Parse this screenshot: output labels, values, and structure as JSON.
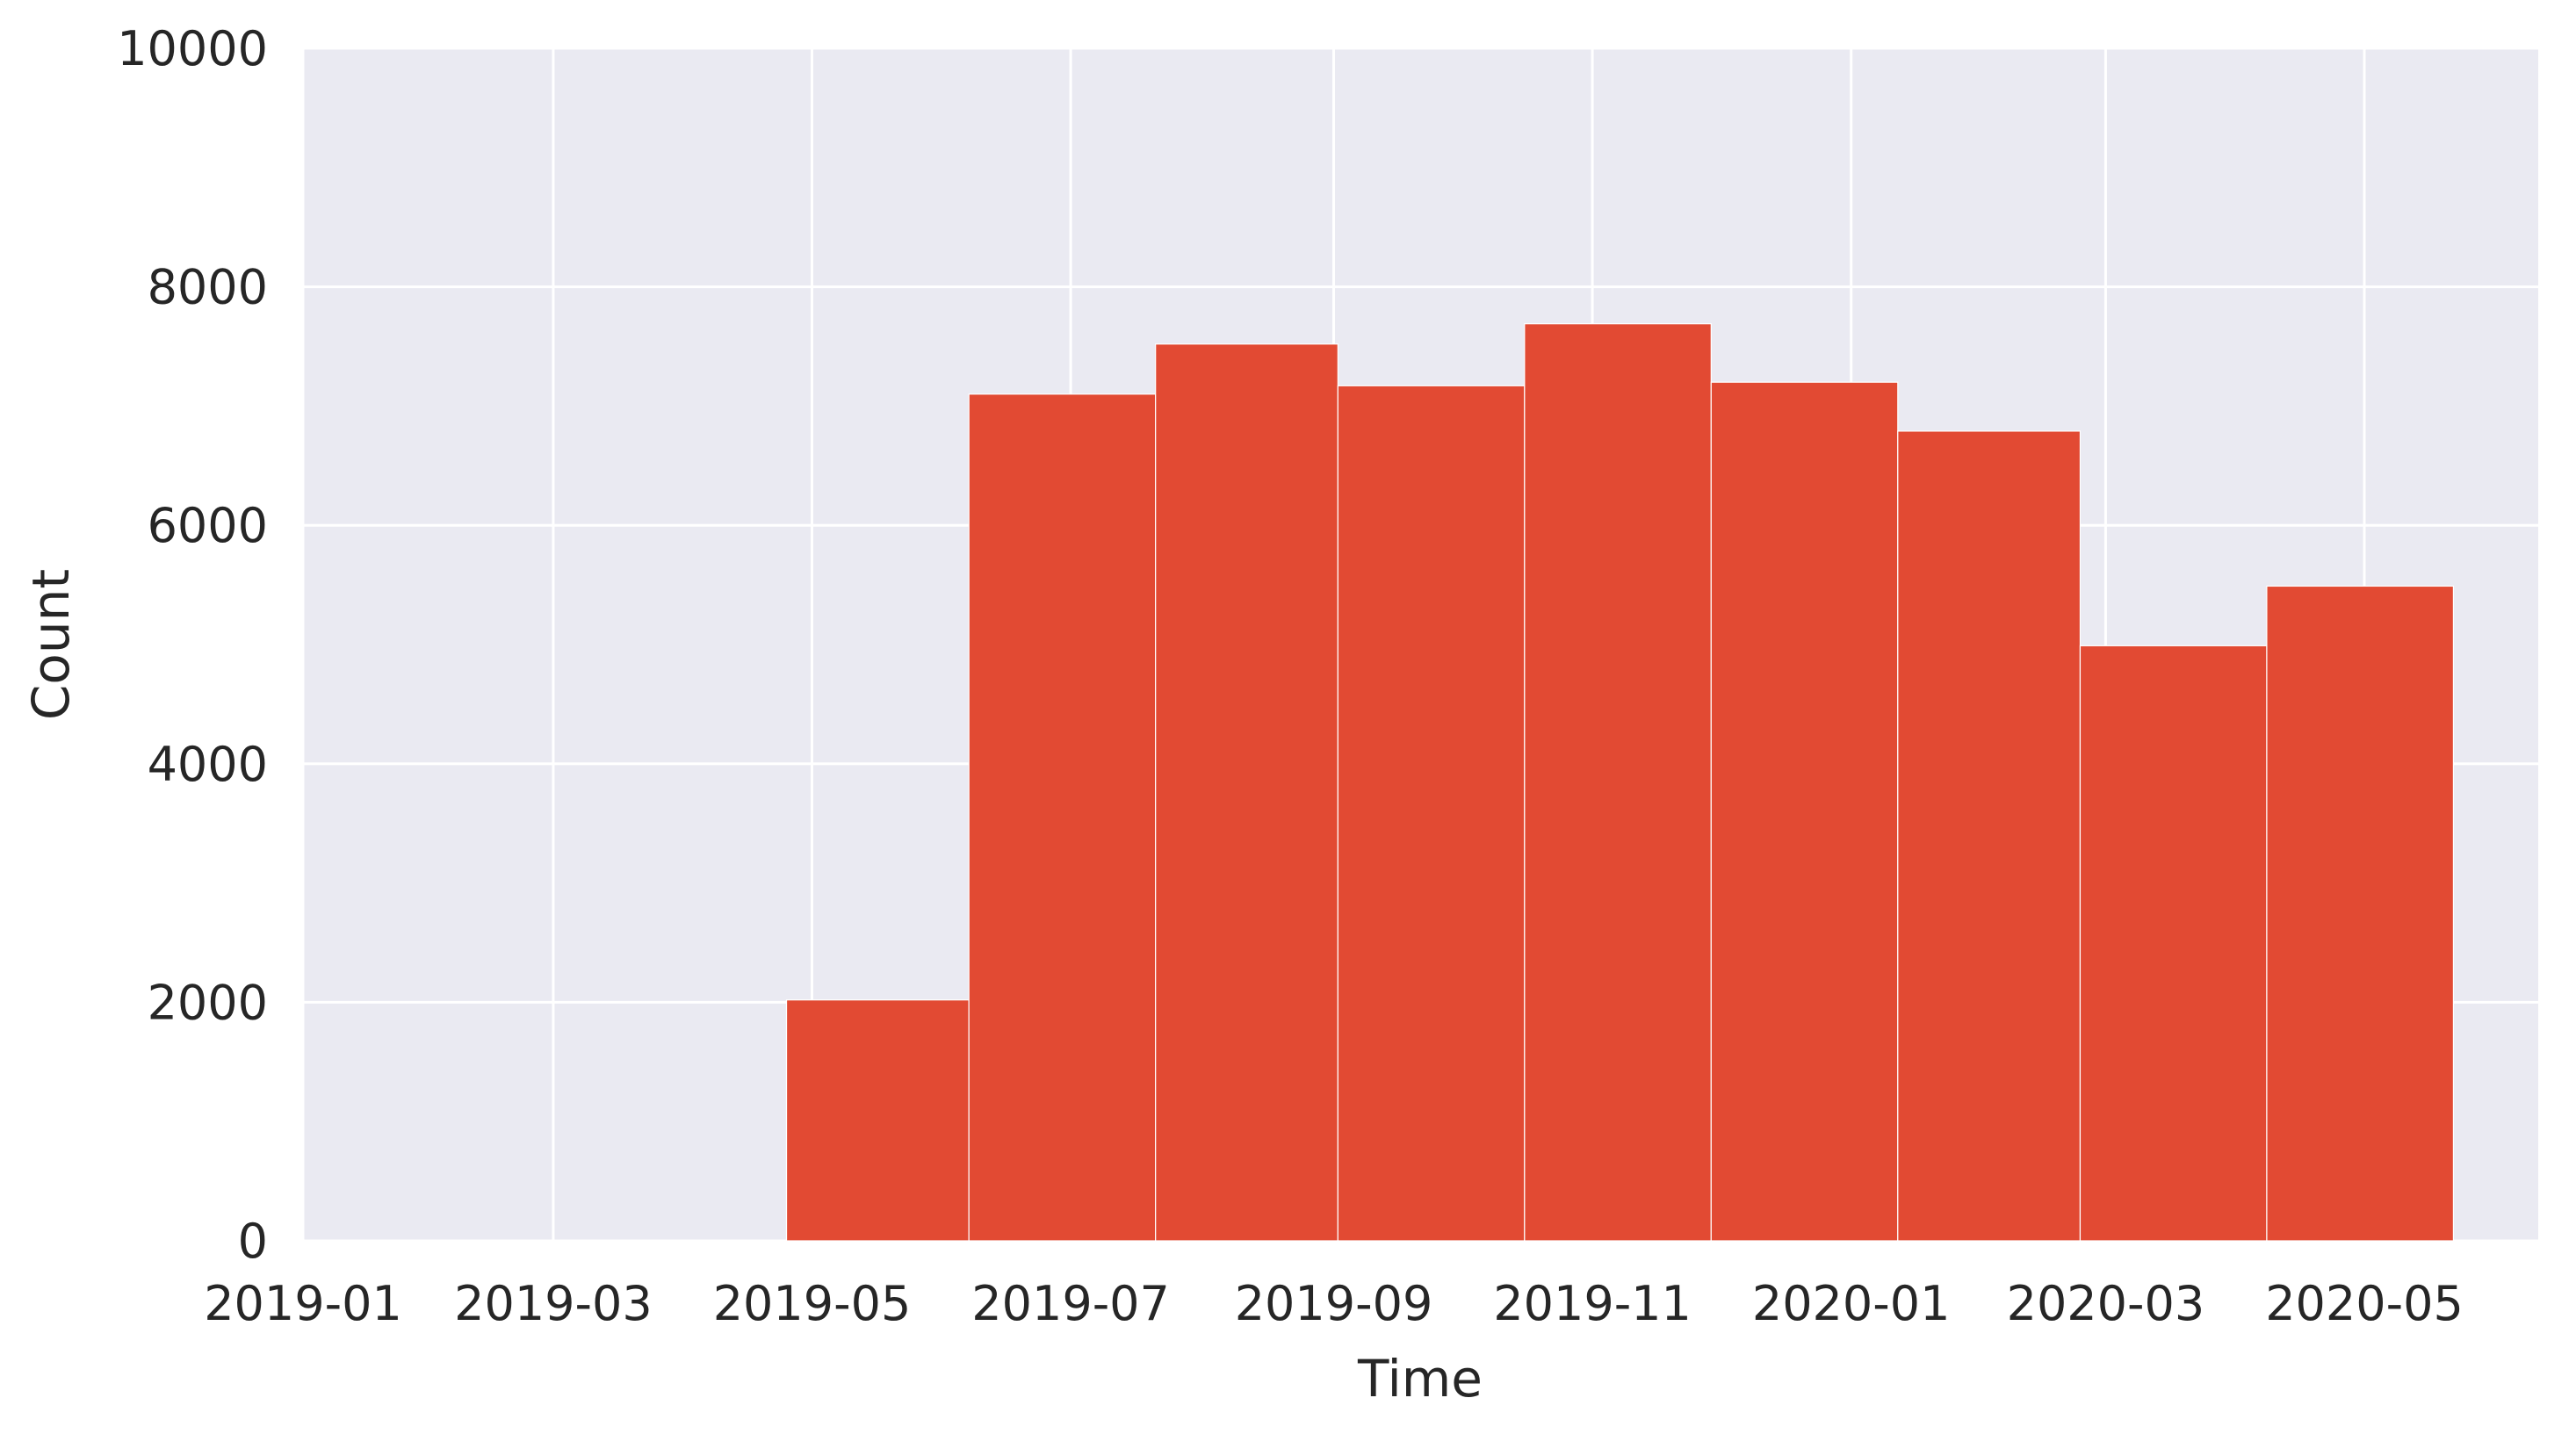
{
  "chart_data": {
    "type": "bar",
    "title": "",
    "xlabel": "Time",
    "ylabel": "Count",
    "x_tick_labels": [
      "2019-01",
      "2019-03",
      "2019-05",
      "2019-07",
      "2019-09",
      "2019-11",
      "2020-01",
      "2020-03",
      "2020-05"
    ],
    "y_tick_labels": [
      "0",
      "2000",
      "4000",
      "6000",
      "8000",
      "10000"
    ],
    "xlim": [
      "2019-01-01",
      "2020-06-11"
    ],
    "ylim": [
      0,
      10000
    ],
    "grid": true,
    "bar_color": "#e24a33",
    "background_color": "#eaeaf2",
    "bins": [
      {
        "start": "2019-04-25",
        "end": "2019-06-07",
        "value": 2020
      },
      {
        "start": "2019-06-07",
        "end": "2019-07-21",
        "value": 7100
      },
      {
        "start": "2019-07-21",
        "end": "2019-09-02",
        "value": 7520
      },
      {
        "start": "2019-09-02",
        "end": "2019-10-16",
        "value": 7170
      },
      {
        "start": "2019-10-16",
        "end": "2019-11-29",
        "value": 7690
      },
      {
        "start": "2019-11-29",
        "end": "2020-01-12",
        "value": 7200
      },
      {
        "start": "2020-01-12",
        "end": "2020-02-24",
        "value": 6790
      },
      {
        "start": "2020-02-24",
        "end": "2020-04-08",
        "value": 4990
      },
      {
        "start": "2020-04-08",
        "end": "2020-05-22",
        "value": 5490
      }
    ]
  }
}
